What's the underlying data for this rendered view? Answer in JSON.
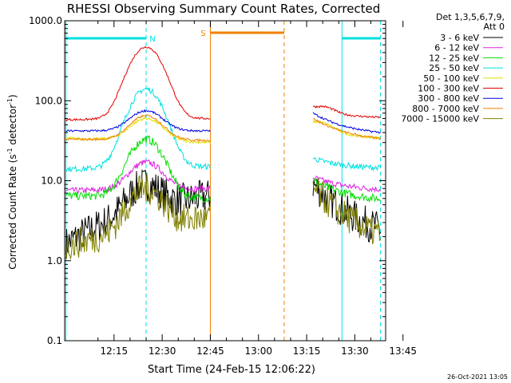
{
  "chart_data": {
    "type": "line",
    "title": "RHESSI Observing Summary Count Rates, Corrected",
    "xlabel": "Start Time (24-Feb-15 12:06:22)",
    "ylabel_main": "Corrected Count Rate (s",
    "ylabel_sup1": "-1",
    "ylabel_mid": " detector",
    "ylabel_sup2": "-1",
    "ylabel_end": ")",
    "y_scale": "log",
    "ylim": [
      0.1,
      1000
    ],
    "xlim_minutes": [
      -0.37,
      99.6
    ],
    "x_ticks": [
      {
        "label": "12:15",
        "t": 15
      },
      {
        "label": "12:30",
        "t": 30
      },
      {
        "label": "12:45",
        "t": 45
      },
      {
        "label": "13:00",
        "t": 60
      },
      {
        "label": "13:15",
        "t": 75
      },
      {
        "label": "13:30",
        "t": 90
      },
      {
        "label": "13:45",
        "t": 105
      }
    ],
    "y_ticks": [
      {
        "label": "0.1",
        "v": 0.1
      },
      {
        "label": "1.0",
        "v": 1
      },
      {
        "label": "10.0",
        "v": 10
      },
      {
        "label": "100.0",
        "v": 100
      },
      {
        "label": "1000.0",
        "v": 1000
      }
    ],
    "legend_header": [
      "Det 1,3,5,6,7,9,",
      "Att 0"
    ],
    "legend_position": "right",
    "footer_date": "26-Oct-2021 13:05",
    "data_gap": {
      "start": 45,
      "end": 77
    },
    "series": [
      {
        "name": "3 - 6 keV",
        "color": "#000000",
        "before": 1.6,
        "peak": 9,
        "mid": 6.5,
        "after_start": 9,
        "after_end": 1.8,
        "noise": 0.5
      },
      {
        "name": "6 - 12 keV",
        "color": "#e020e0",
        "before": 7.5,
        "peak": 17,
        "mid": 8,
        "after_start": 11,
        "after_end": 7.5,
        "noise": 0.09
      },
      {
        "name": "12 - 25 keV",
        "color": "#00e000",
        "before": 6.5,
        "peak": 33,
        "mid": 6,
        "after_start": 10,
        "after_end": 5.5,
        "noise": 0.12
      },
      {
        "name": "25 - 50 keV",
        "color": "#00e0e0",
        "before": 14,
        "peak": 140,
        "mid": 15,
        "after_start": 19,
        "after_end": 14,
        "noise": 0.08
      },
      {
        "name": "50 - 100 keV",
        "color": "#e0e000",
        "before": 34,
        "peak": 60,
        "mid": 30,
        "after_start": 52,
        "after_end": 32,
        "noise": 0.04
      },
      {
        "name": "100 - 300 keV",
        "color": "#e00000",
        "before": 58,
        "peak": 470,
        "mid": 60,
        "after_start": 80,
        "after_end": 60,
        "noise": 0.03
      },
      {
        "name": "300 - 800 keV",
        "color": "#0000e0",
        "before": 42,
        "peak": 75,
        "mid": 42,
        "after_start": 70,
        "after_end": 37,
        "noise": 0.03
      },
      {
        "name": "800 - 7000 keV",
        "color": "#f08000",
        "before": 33,
        "peak": 65,
        "mid": 32,
        "after_start": 60,
        "after_end": 31,
        "noise": 0.03
      },
      {
        "name": "7000 - 15000 keV",
        "color": "#808000",
        "before": 1.5,
        "peak": 8,
        "mid": 3.5,
        "after_start": 8,
        "after_end": 1.5,
        "noise": 0.45
      }
    ],
    "annotations": [
      {
        "label": "N",
        "type": "night",
        "color": "#00e0e0",
        "t_dashed": 25,
        "bar_from": 0,
        "bar_to": 25
      },
      {
        "label": "S",
        "type": "saa",
        "color": "#f08000",
        "t_start": 45,
        "t_dashed": 68,
        "bar_from": 45,
        "bar_to": 68
      }
    ],
    "night_bar_after": {
      "from": 86,
      "to": 98,
      "color": "#00e0e0"
    },
    "vlines": [
      {
        "t": 0,
        "color": "#00e0e0",
        "style": "solid"
      },
      {
        "t": 25,
        "color": "#00e0e0",
        "style": "dashed"
      },
      {
        "t": 45,
        "color": "#f08000",
        "style": "solid"
      },
      {
        "t": 68,
        "color": "#f08000",
        "style": "dashed"
      },
      {
        "t": 86,
        "color": "#00e0e0",
        "style": "solid"
      },
      {
        "t": 98,
        "color": "#00e0e0",
        "style": "dashed"
      }
    ]
  }
}
